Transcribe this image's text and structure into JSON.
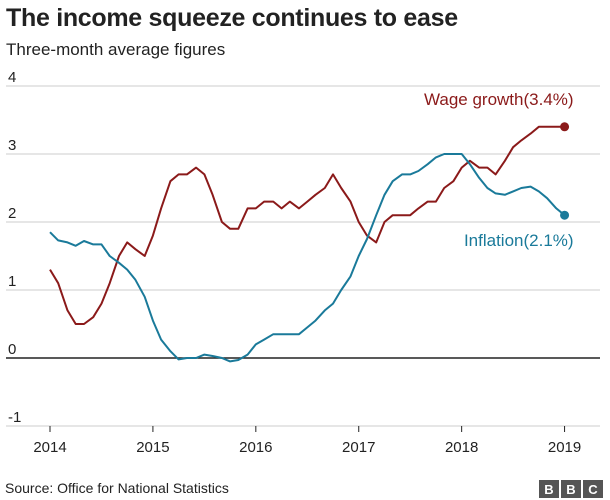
{
  "header": {
    "title": "The income squeeze continues to ease",
    "subtitle": "Three-month average figures"
  },
  "footer": {
    "source": "Source: Office for National Statistics",
    "logo_letters": [
      "B",
      "B",
      "C"
    ]
  },
  "chart_data": {
    "type": "line",
    "xlabel": "",
    "ylabel": "",
    "xlim": [
      2014,
      2019.15
    ],
    "ylim": [
      -1,
      4
    ],
    "x_ticks": [
      2014,
      2015,
      2016,
      2017,
      2018,
      2019
    ],
    "y_ticks": [
      -1,
      0,
      1,
      2,
      3,
      4
    ],
    "grid": true,
    "series": [
      {
        "name": "Wage growth",
        "label": "Wage growth(3.4%)",
        "color": "#8b1a1a",
        "x": [
          2014.0,
          2014.08,
          2014.17,
          2014.25,
          2014.33,
          2014.42,
          2014.5,
          2014.58,
          2014.67,
          2014.75,
          2014.83,
          2014.92,
          2015.0,
          2015.08,
          2015.17,
          2015.25,
          2015.33,
          2015.42,
          2015.5,
          2015.58,
          2015.67,
          2015.75,
          2015.83,
          2015.92,
          2016.0,
          2016.08,
          2016.17,
          2016.25,
          2016.33,
          2016.42,
          2016.5,
          2016.58,
          2016.67,
          2016.75,
          2016.83,
          2016.92,
          2017.0,
          2017.08,
          2017.17,
          2017.25,
          2017.33,
          2017.42,
          2017.5,
          2017.58,
          2017.67,
          2017.75,
          2017.83,
          2017.92,
          2018.0,
          2018.08,
          2018.17,
          2018.25,
          2018.33,
          2018.42,
          2018.5,
          2018.58,
          2018.67,
          2018.75,
          2018.83,
          2018.92,
          2019.0
        ],
        "values": [
          1.3,
          1.1,
          0.7,
          0.5,
          0.5,
          0.6,
          0.8,
          1.1,
          1.5,
          1.7,
          1.6,
          1.5,
          1.8,
          2.2,
          2.6,
          2.7,
          2.7,
          2.8,
          2.7,
          2.4,
          2.0,
          1.9,
          1.9,
          2.2,
          2.2,
          2.3,
          2.3,
          2.2,
          2.3,
          2.2,
          2.3,
          2.4,
          2.5,
          2.7,
          2.5,
          2.3,
          2.0,
          1.8,
          1.7,
          2.0,
          2.1,
          2.1,
          2.1,
          2.2,
          2.3,
          2.3,
          2.5,
          2.6,
          2.8,
          2.9,
          2.8,
          2.8,
          2.7,
          2.9,
          3.1,
          3.2,
          3.3,
          3.4,
          3.4,
          3.4,
          3.4
        ]
      },
      {
        "name": "Inflation",
        "label": "Inflation(2.1%)",
        "color": "#1a7a9a",
        "x": [
          2014.0,
          2014.08,
          2014.17,
          2014.25,
          2014.33,
          2014.42,
          2014.5,
          2014.58,
          2014.67,
          2014.75,
          2014.83,
          2014.92,
          2015.0,
          2015.08,
          2015.17,
          2015.25,
          2015.33,
          2015.42,
          2015.5,
          2015.58,
          2015.67,
          2015.75,
          2015.83,
          2015.92,
          2016.0,
          2016.08,
          2016.17,
          2016.25,
          2016.33,
          2016.42,
          2016.5,
          2016.58,
          2016.67,
          2016.75,
          2016.83,
          2016.92,
          2017.0,
          2017.08,
          2017.17,
          2017.25,
          2017.33,
          2017.42,
          2017.5,
          2017.58,
          2017.67,
          2017.75,
          2017.83,
          2017.92,
          2018.0,
          2018.08,
          2018.17,
          2018.25,
          2018.33,
          2018.42,
          2018.5,
          2018.58,
          2018.67,
          2018.75,
          2018.83,
          2018.92,
          2019.0
        ],
        "values": [
          1.85,
          1.73,
          1.7,
          1.65,
          1.72,
          1.67,
          1.67,
          1.5,
          1.4,
          1.3,
          1.15,
          0.9,
          0.55,
          0.27,
          0.1,
          -0.02,
          0.0,
          0.0,
          0.05,
          0.03,
          0.0,
          -0.05,
          -0.03,
          0.05,
          0.2,
          0.27,
          0.35,
          0.35,
          0.35,
          0.35,
          0.45,
          0.55,
          0.7,
          0.8,
          1.0,
          1.2,
          1.5,
          1.75,
          2.1,
          2.4,
          2.6,
          2.7,
          2.7,
          2.75,
          2.85,
          2.95,
          3.0,
          3.0,
          3.0,
          2.85,
          2.65,
          2.5,
          2.42,
          2.4,
          2.45,
          2.5,
          2.52,
          2.45,
          2.35,
          2.2,
          2.1
        ]
      }
    ]
  }
}
